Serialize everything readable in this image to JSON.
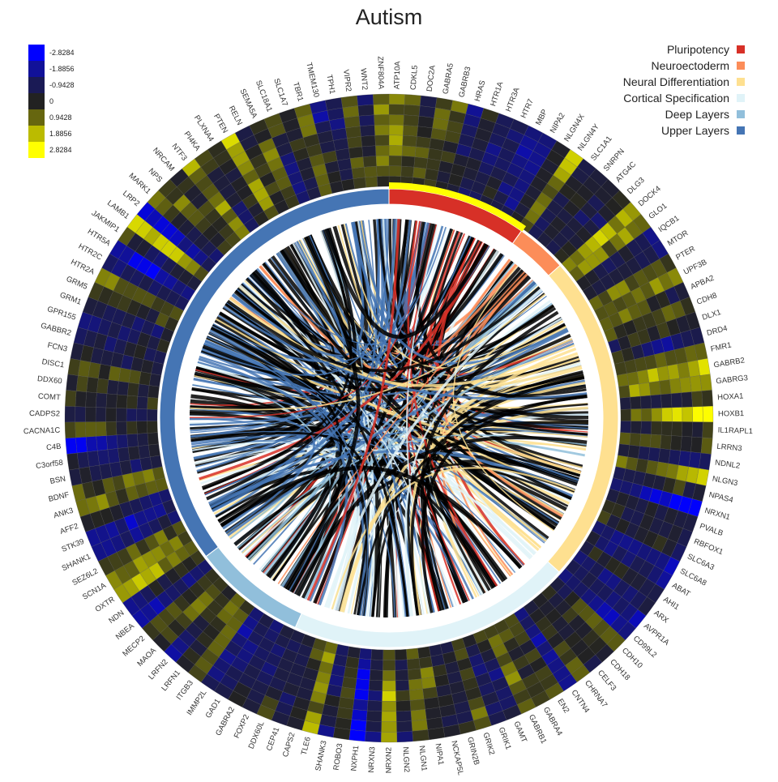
{
  "chart_data": {
    "type": "heatmap",
    "title": "Autism",
    "layout": "circular heatmap with chord links",
    "color_scale": {
      "ticks": [
        -2.8284,
        -1.8856,
        -0.9428,
        0,
        0.9428,
        1.8856,
        2.8284
      ],
      "tick_labels": [
        "-2.8284",
        "-1.8856",
        "-0.9428",
        "0",
        "0.9428",
        "1.8856",
        "2.8284"
      ],
      "colors": [
        "#0000ff",
        "#111199",
        "#1a1a55",
        "#222222",
        "#66660f",
        "#bbbb00",
        "#ffff00"
      ],
      "placement": "top-left"
    },
    "legend": {
      "placement": "top-right",
      "items": [
        {
          "name": "Pluripotency",
          "color": "#d73027"
        },
        {
          "name": "Neuroectoderm",
          "color": "#fc8d59"
        },
        {
          "name": "Neural Differentiation",
          "color": "#fee090"
        },
        {
          "name": "Cortical Specification",
          "color": "#e0f3f8"
        },
        {
          "name": "Deep Layers",
          "color": "#91bfdb"
        },
        {
          "name": "Upper Layers",
          "color": "#4575b4"
        }
      ]
    },
    "stages": [
      {
        "name": "Pluripotency",
        "fraction": 0.098
      },
      {
        "name": "Neuroectoderm",
        "fraction": 0.036
      },
      {
        "name": "Neural Differentiation",
        "fraction": 0.233
      },
      {
        "name": "Cortical Specification",
        "fraction": 0.2
      },
      {
        "name": "Deep Layers",
        "fraction": 0.08
      },
      {
        "name": "Upper Layers",
        "fraction": 0.353
      }
    ],
    "genes": [
      "ATP10A",
      "CDKL5",
      "DOC2A",
      "GABRA5",
      "GABRB3",
      "HRAS",
      "HTR1A",
      "HTR3A",
      "HTR7",
      "MBP",
      "NIPA2",
      "NLGN4X",
      "NLGN4Y",
      "SLC1A1",
      "SNRPN",
      "ATG4C",
      "DLG3",
      "DOCK4",
      "GLO1",
      "IQCB1",
      "MTOR",
      "PTER",
      "UPF3B",
      "APBA2",
      "CDH8",
      "DLX1",
      "DRD4",
      "FMR1",
      "GABRB2",
      "GABRG3",
      "HOXA1",
      "HOXB1",
      "IL1RAPL1",
      "LRRN3",
      "NDNL2",
      "NLGN3",
      "NPAS4",
      "NRXN1",
      "PVALB",
      "RBFOX1",
      "SLC6A3",
      "SLC6A8",
      "ABAT",
      "AHI1",
      "ARX",
      "AVPR1A",
      "CD99L2",
      "CDH10",
      "CDH18",
      "CELF3",
      "CHRNA7",
      "CNTN4",
      "EN2",
      "GABRA4",
      "GABRB1",
      "GAMT",
      "GRIK1",
      "GRIK2",
      "GRIN2B",
      "NCKAP5L",
      "NIPA1",
      "NLGN1",
      "NLGN2",
      "NRXN2",
      "NRXN3",
      "NXPH1",
      "ROBO3",
      "SHANK3",
      "TLE6",
      "CAPS2",
      "CEP41",
      "DDX60L",
      "FOXP2",
      "GABRA2",
      "GAD1",
      "IMMP2L",
      "ITGB3",
      "LRFN1",
      "LRFN2",
      "MAOA",
      "MECP2",
      "NBEA",
      "NDN",
      "OXTR",
      "SCN1A",
      "SEZ6L2",
      "SHANK1",
      "STK39",
      "AFF2",
      "ANK3",
      "BDNF",
      "BSN",
      "C3orf58",
      "C4B",
      "CACNA1C",
      "CADPS2",
      "COMT",
      "DDX60",
      "DISC1",
      "FCN3",
      "GABBR2",
      "GPR155",
      "GRM1",
      "GRM5",
      "HTR2A",
      "HTR2C",
      "HTR5A",
      "JAKMIP1",
      "LAMB1",
      "LRP2",
      "MARK1",
      "NPS",
      "NRCAM",
      "NTF3",
      "PI4KA",
      "PLXNA4",
      "PTEN",
      "RELN",
      "SEMA5A",
      "SLC18A1",
      "SLC1A7",
      "TBR1",
      "TMEM130",
      "TPH1",
      "VIPR2",
      "WNT2",
      "ZNF804A"
    ],
    "heatmap_rings": 9
  }
}
